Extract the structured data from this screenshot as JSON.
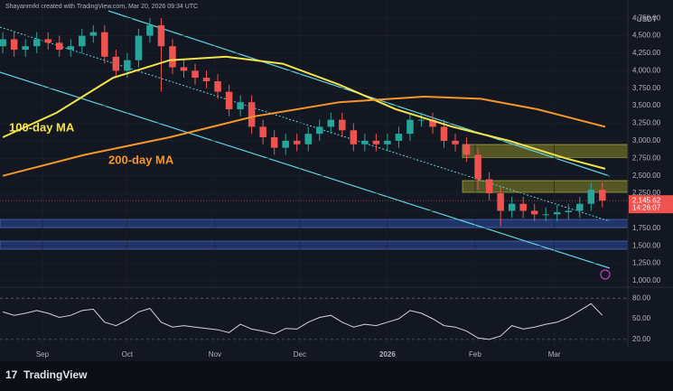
{
  "header": "Shayanmrkt created with TradingView.com, Mar 20, 2026 09:34 UTC",
  "footer_logo": "TradingView",
  "chart_data": [
    {
      "type": "candlestick",
      "currency": "USDT",
      "x": [
        1,
        5,
        9,
        13,
        17,
        21,
        25,
        29,
        33,
        37,
        41,
        45,
        49,
        53,
        57,
        61,
        65,
        69,
        73,
        77,
        81,
        85,
        89,
        93,
        97,
        101,
        105,
        109,
        113,
        117,
        121,
        125,
        129,
        133,
        137,
        141,
        145,
        149,
        153,
        157,
        161,
        165,
        169,
        173,
        177,
        181,
        185,
        189,
        193,
        197,
        201,
        205,
        209,
        213
      ],
      "open": [
        4350,
        4450,
        4300,
        4350,
        4450,
        4400,
        4300,
        4350,
        4500,
        4550,
        4200,
        4000,
        4150,
        4500,
        4650,
        4350,
        4050,
        4000,
        3900,
        3850,
        3700,
        3450,
        3550,
        3200,
        3050,
        2900,
        3000,
        2950,
        3100,
        3200,
        3300,
        3150,
        2950,
        3000,
        2950,
        3000,
        3100,
        3300,
        3300,
        3200,
        3000,
        2950,
        2800,
        2450,
        2250,
        2000,
        2100,
        2000,
        1950,
        1950,
        1980,
        2000,
        2100,
        2300
      ],
      "high": [
        4550,
        4550,
        4450,
        4550,
        4550,
        4500,
        4450,
        4600,
        4650,
        4650,
        4300,
        4250,
        4600,
        4750,
        4750,
        4450,
        4150,
        4100,
        4000,
        3950,
        3800,
        3650,
        3650,
        3300,
        3150,
        3100,
        3100,
        3200,
        3300,
        3400,
        3400,
        3250,
        3100,
        3100,
        3100,
        3200,
        3400,
        3400,
        3400,
        3300,
        3100,
        3050,
        2900,
        2550,
        2350,
        2200,
        2200,
        2100,
        2050,
        2080,
        2100,
        2200,
        2400,
        2400
      ],
      "low": [
        4250,
        4200,
        4200,
        4250,
        4300,
        4200,
        4200,
        4250,
        4400,
        4100,
        3900,
        3900,
        4050,
        4400,
        3700,
        3950,
        3900,
        3800,
        3750,
        3600,
        3350,
        3350,
        3100,
        2950,
        2800,
        2800,
        2850,
        2850,
        3000,
        3100,
        3050,
        2850,
        2850,
        2850,
        2850,
        2900,
        3000,
        3200,
        3100,
        2900,
        2850,
        2700,
        2300,
        2150,
        1780,
        1900,
        1900,
        1850,
        1850,
        1850,
        1880,
        1900,
        2000,
        2050
      ],
      "close": [
        4450,
        4300,
        4350,
        4450,
        4400,
        4300,
        4350,
        4500,
        4550,
        4200,
        4000,
        4150,
        4500,
        4650,
        4350,
        4050,
        4000,
        3900,
        3850,
        3700,
        3450,
        3550,
        3200,
        3050,
        2900,
        3000,
        2950,
        3100,
        3200,
        3300,
        3150,
        2950,
        3000,
        2950,
        3000,
        3100,
        3300,
        3300,
        3200,
        3000,
        2950,
        2800,
        2450,
        2250,
        2000,
        2100,
        2000,
        1950,
        1950,
        1980,
        2000,
        2100,
        2300,
        2145
      ],
      "up_color": "#26a69a",
      "down_color": "#ef5350",
      "series": [
        {
          "name": "100-day MA",
          "color": "#f2e24b",
          "x": [
            1,
            20,
            40,
            60,
            80,
            100,
            120,
            140,
            160,
            180,
            200,
            214
          ],
          "values": [
            3050,
            3400,
            3900,
            4150,
            4200,
            4100,
            3800,
            3450,
            3200,
            3000,
            2750,
            2600
          ]
        },
        {
          "name": "200-day MA",
          "color": "#f5962a",
          "x": [
            1,
            30,
            60,
            90,
            120,
            150,
            170,
            190,
            214
          ],
          "values": [
            2500,
            2800,
            3050,
            3350,
            3550,
            3630,
            3600,
            3450,
            3200
          ]
        }
      ],
      "last_price": {
        "value": 2145.62,
        "label": "2,145.62"
      },
      "countdown": "14:26:07",
      "xlim": [
        0,
        222
      ],
      "xticks": [
        {
          "value": 15,
          "label": "Sep"
        },
        {
          "value": 45,
          "label": "Oct"
        },
        {
          "value": 76,
          "label": "Nov"
        },
        {
          "value": 106,
          "label": "Dec"
        },
        {
          "value": 137,
          "label": "2026"
        },
        {
          "value": 168,
          "label": "Feb"
        },
        {
          "value": 196,
          "label": "Mar"
        }
      ],
      "ylim": [
        910,
        5010
      ],
      "yticks": [
        {
          "value": 4750,
          "label": "4,750.00"
        },
        {
          "value": 4500,
          "label": "4,500.00"
        },
        {
          "value": 4250,
          "label": "4,250.00"
        },
        {
          "value": 4000,
          "label": "4,000.00"
        },
        {
          "value": 3750,
          "label": "3,750.00"
        },
        {
          "value": 3500,
          "label": "3,500.00"
        },
        {
          "value": 3250,
          "label": "3,250.00"
        },
        {
          "value": 3000,
          "label": "3,000.00"
        },
        {
          "value": 2750,
          "label": "2,750.00"
        },
        {
          "value": 2500,
          "label": "2,500.00"
        },
        {
          "value": 2250,
          "label": "2,250.00"
        },
        {
          "value": 2000,
          "label": "2,000.00"
        },
        {
          "value": 1750,
          "label": "1,750.00"
        },
        {
          "value": 1500,
          "label": "1,500.00"
        },
        {
          "value": 1250,
          "label": "1,250.00"
        },
        {
          "value": 1000,
          "label": "1,000.00"
        }
      ]
    },
    {
      "type": "line",
      "color": "#d1d4dc",
      "x": [
        1,
        5,
        9,
        13,
        17,
        21,
        25,
        29,
        33,
        37,
        41,
        45,
        49,
        53,
        57,
        61,
        65,
        69,
        73,
        77,
        81,
        85,
        89,
        93,
        97,
        101,
        105,
        109,
        113,
        117,
        121,
        125,
        129,
        133,
        137,
        141,
        145,
        149,
        153,
        157,
        161,
        165,
        169,
        173,
        177,
        181,
        185,
        189,
        193,
        197,
        201,
        205,
        209,
        213
      ],
      "values": [
        60,
        55,
        58,
        62,
        58,
        52,
        55,
        62,
        64,
        45,
        40,
        48,
        60,
        65,
        45,
        38,
        40,
        38,
        36,
        34,
        30,
        42,
        35,
        32,
        28,
        36,
        35,
        45,
        52,
        55,
        45,
        38,
        42,
        40,
        45,
        50,
        62,
        58,
        50,
        40,
        38,
        32,
        22,
        20,
        25,
        40,
        35,
        38,
        42,
        45,
        52,
        62,
        72,
        55
      ],
      "ylim": [
        8,
        96
      ],
      "yticks": [
        {
          "value": 80,
          "label": "80.00"
        },
        {
          "value": 50,
          "label": "50.00"
        },
        {
          "value": 20,
          "label": "20.00"
        }
      ]
    }
  ]
}
